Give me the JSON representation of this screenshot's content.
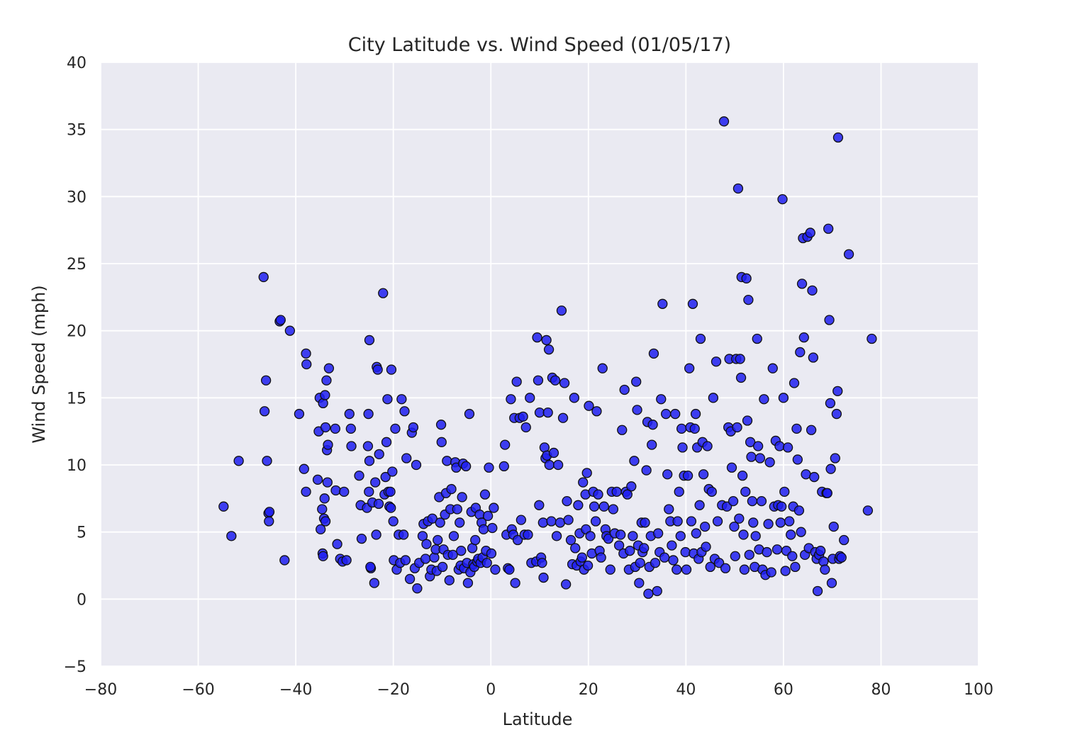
{
  "chart_data": {
    "type": "scatter",
    "title": "City Latitude vs. Wind Speed (01/05/17)",
    "xlabel": "Latitude",
    "ylabel": "Wind Speed (mph)",
    "xlim": [
      -80,
      100
    ],
    "ylim": [
      -5,
      40
    ],
    "xticks": [
      -80,
      -60,
      -40,
      -20,
      0,
      20,
      40,
      60,
      80,
      100
    ],
    "yticks": [
      -5,
      0,
      5,
      10,
      15,
      20,
      25,
      30,
      35,
      40
    ],
    "xtick_labels": [
      "−80",
      "−60",
      "−40",
      "−20",
      "0",
      "20",
      "40",
      "60",
      "80",
      "100"
    ],
    "ytick_labels": [
      "−5",
      "0",
      "5",
      "10",
      "15",
      "20",
      "25",
      "30",
      "35",
      "40"
    ],
    "grid": true,
    "colors": {
      "background": "#eaeaf2",
      "grid": "#ffffff",
      "marker": "#1f1ff0",
      "marker_edge": "#101010"
    },
    "points": [
      [
        -54.8,
        6.9
      ],
      [
        -53.2,
        4.7
      ],
      [
        -51.7,
        10.3
      ],
      [
        -46.6,
        24.0
      ],
      [
        -46.4,
        14.0
      ],
      [
        -46.1,
        16.3
      ],
      [
        -45.9,
        10.3
      ],
      [
        -45.6,
        6.4
      ],
      [
        -45.4,
        6.5
      ],
      [
        -45.5,
        5.8
      ],
      [
        -43.3,
        20.7
      ],
      [
        -43.1,
        20.8
      ],
      [
        -42.3,
        2.9
      ],
      [
        -41.2,
        20.0
      ],
      [
        -39.3,
        13.8
      ],
      [
        -38.3,
        9.7
      ],
      [
        -37.9,
        18.3
      ],
      [
        -37.8,
        17.5
      ],
      [
        -37.9,
        8.0
      ],
      [
        -35.5,
        8.9
      ],
      [
        -35.3,
        12.5
      ],
      [
        -35.1,
        15.0
      ],
      [
        -34.9,
        5.2
      ],
      [
        -34.6,
        6.7
      ],
      [
        -34.4,
        14.6
      ],
      [
        -34.2,
        6.0
      ],
      [
        -34.0,
        15.2
      ],
      [
        -33.9,
        12.8
      ],
      [
        -33.7,
        16.3
      ],
      [
        -33.6,
        11.1
      ],
      [
        -33.4,
        11.5
      ],
      [
        -33.2,
        17.2
      ],
      [
        -33.5,
        8.7
      ],
      [
        -34.5,
        3.4
      ],
      [
        -34.4,
        3.2
      ],
      [
        -34.1,
        7.5
      ],
      [
        -33.9,
        5.8
      ],
      [
        -31.9,
        12.7
      ],
      [
        -31.8,
        8.1
      ],
      [
        -31.5,
        4.1
      ],
      [
        -30.9,
        3.0
      ],
      [
        -30.4,
        2.8
      ],
      [
        -30.1,
        8.0
      ],
      [
        -29.6,
        2.9
      ],
      [
        -29.0,
        13.8
      ],
      [
        -28.7,
        12.7
      ],
      [
        -28.6,
        11.4
      ],
      [
        -27.0,
        9.2
      ],
      [
        -26.7,
        7.0
      ],
      [
        -26.5,
        4.5
      ],
      [
        -25.4,
        6.8
      ],
      [
        -25.2,
        11.4
      ],
      [
        -25.1,
        13.8
      ],
      [
        -24.9,
        19.3
      ],
      [
        -25.0,
        8.0
      ],
      [
        -24.9,
        10.3
      ],
      [
        -24.6,
        2.3
      ],
      [
        -24.7,
        2.4
      ],
      [
        -24.3,
        7.2
      ],
      [
        -23.9,
        1.2
      ],
      [
        -23.7,
        8.7
      ],
      [
        -23.5,
        4.8
      ],
      [
        -23.4,
        17.3
      ],
      [
        -23.2,
        17.1
      ],
      [
        -23.0,
        7.1
      ],
      [
        -22.9,
        10.8
      ],
      [
        -22.1,
        22.8
      ],
      [
        -21.8,
        7.8
      ],
      [
        -21.6,
        9.1
      ],
      [
        -21.4,
        11.7
      ],
      [
        -21.2,
        14.9
      ],
      [
        -21.0,
        8.0
      ],
      [
        -20.8,
        6.9
      ],
      [
        -20.6,
        8.0
      ],
      [
        -20.5,
        6.8
      ],
      [
        -20.4,
        17.1
      ],
      [
        -20.2,
        9.5
      ],
      [
        -20.0,
        5.8
      ],
      [
        -19.9,
        2.9
      ],
      [
        -19.6,
        12.7
      ],
      [
        -19.3,
        2.2
      ],
      [
        -18.9,
        4.8
      ],
      [
        -18.6,
        2.7
      ],
      [
        -18.3,
        14.9
      ],
      [
        -17.9,
        4.8
      ],
      [
        -17.7,
        14.0
      ],
      [
        -17.5,
        2.9
      ],
      [
        -17.3,
        10.5
      ],
      [
        -16.6,
        1.5
      ],
      [
        -16.2,
        12.4
      ],
      [
        -15.9,
        12.8
      ],
      [
        -15.6,
        2.3
      ],
      [
        -15.3,
        10.0
      ],
      [
        -15.1,
        0.8
      ],
      [
        -14.7,
        2.7
      ],
      [
        -14.0,
        4.7
      ],
      [
        -13.8,
        5.6
      ],
      [
        -13.4,
        3.0
      ],
      [
        -13.2,
        4.1
      ],
      [
        -12.9,
        5.8
      ],
      [
        -12.5,
        1.7
      ],
      [
        -12.2,
        2.2
      ],
      [
        -12.0,
        6.0
      ],
      [
        -11.6,
        3.1
      ],
      [
        -11.3,
        3.7
      ],
      [
        -11.1,
        2.1
      ],
      [
        -10.9,
        4.4
      ],
      [
        -10.6,
        7.6
      ],
      [
        -10.4,
        5.7
      ],
      [
        -10.2,
        13.0
      ],
      [
        -10.1,
        11.7
      ],
      [
        -9.9,
        2.4
      ],
      [
        -9.7,
        3.7
      ],
      [
        -9.4,
        6.3
      ],
      [
        -9.2,
        7.9
      ],
      [
        -9.0,
        10.3
      ],
      [
        -8.8,
        3.3
      ],
      [
        -8.5,
        1.4
      ],
      [
        -8.3,
        6.7
      ],
      [
        -8.1,
        8.2
      ],
      [
        -7.8,
        3.3
      ],
      [
        -7.6,
        4.7
      ],
      [
        -7.3,
        10.2
      ],
      [
        -7.1,
        9.8
      ],
      [
        -6.9,
        6.7
      ],
      [
        -6.6,
        2.2
      ],
      [
        -6.4,
        5.7
      ],
      [
        -6.2,
        2.5
      ],
      [
        -6.1,
        3.6
      ],
      [
        -5.9,
        7.6
      ],
      [
        -5.7,
        10.1
      ],
      [
        -5.5,
        2.3
      ],
      [
        -5.1,
        9.9
      ],
      [
        -4.9,
        2.7
      ],
      [
        -4.7,
        1.2
      ],
      [
        -4.4,
        13.8
      ],
      [
        -4.2,
        2.0
      ],
      [
        -4.0,
        6.5
      ],
      [
        -3.8,
        3.8
      ],
      [
        -3.6,
        2.6
      ],
      [
        -3.4,
        2.4
      ],
      [
        -3.2,
        4.4
      ],
      [
        -3.1,
        6.8
      ],
      [
        -2.8,
        2.8
      ],
      [
        -2.6,
        3.0
      ],
      [
        -2.3,
        6.3
      ],
      [
        -2.1,
        2.7
      ],
      [
        -1.9,
        5.7
      ],
      [
        -1.7,
        3.1
      ],
      [
        -1.5,
        5.2
      ],
      [
        -1.2,
        7.8
      ],
      [
        -1.0,
        3.6
      ],
      [
        -0.8,
        2.7
      ],
      [
        -0.6,
        6.2
      ],
      [
        -0.4,
        9.8
      ],
      [
        0.1,
        3.4
      ],
      [
        0.3,
        5.3
      ],
      [
        0.6,
        6.8
      ],
      [
        0.9,
        2.2
      ],
      [
        2.7,
        9.9
      ],
      [
        2.9,
        11.5
      ],
      [
        3.2,
        4.8
      ],
      [
        3.5,
        2.3
      ],
      [
        3.8,
        2.2
      ],
      [
        4.1,
        14.9
      ],
      [
        4.3,
        5.2
      ],
      [
        4.6,
        4.8
      ],
      [
        4.8,
        13.5
      ],
      [
        5.0,
        1.2
      ],
      [
        5.3,
        16.2
      ],
      [
        5.5,
        4.4
      ],
      [
        5.9,
        13.5
      ],
      [
        6.2,
        5.9
      ],
      [
        6.6,
        13.6
      ],
      [
        6.9,
        4.8
      ],
      [
        7.2,
        12.8
      ],
      [
        7.6,
        4.8
      ],
      [
        8.0,
        15.0
      ],
      [
        8.3,
        2.7
      ],
      [
        9.3,
        2.8
      ],
      [
        9.5,
        19.5
      ],
      [
        9.7,
        16.3
      ],
      [
        9.9,
        7.0
      ],
      [
        10.0,
        13.9
      ],
      [
        10.3,
        3.1
      ],
      [
        10.5,
        2.7
      ],
      [
        10.7,
        5.7
      ],
      [
        10.8,
        1.6
      ],
      [
        11.0,
        11.3
      ],
      [
        11.2,
        10.5
      ],
      [
        11.4,
        19.3
      ],
      [
        11.5,
        10.7
      ],
      [
        11.7,
        13.9
      ],
      [
        11.9,
        18.6
      ],
      [
        12.0,
        10.0
      ],
      [
        12.4,
        5.8
      ],
      [
        12.6,
        16.5
      ],
      [
        12.9,
        10.9
      ],
      [
        13.2,
        16.3
      ],
      [
        13.5,
        4.7
      ],
      [
        13.8,
        10.0
      ],
      [
        14.2,
        5.7
      ],
      [
        14.5,
        21.5
      ],
      [
        14.8,
        13.5
      ],
      [
        15.1,
        16.1
      ],
      [
        15.4,
        1.1
      ],
      [
        15.6,
        7.3
      ],
      [
        15.9,
        5.9
      ],
      [
        16.4,
        4.4
      ],
      [
        16.7,
        2.6
      ],
      [
        17.1,
        15.0
      ],
      [
        17.3,
        3.8
      ],
      [
        17.6,
        2.5
      ],
      [
        17.9,
        7.0
      ],
      [
        18.2,
        4.9
      ],
      [
        18.4,
        2.8
      ],
      [
        18.7,
        3.1
      ],
      [
        18.9,
        8.7
      ],
      [
        19.1,
        2.2
      ],
      [
        19.4,
        7.8
      ],
      [
        19.5,
        5.2
      ],
      [
        19.7,
        9.4
      ],
      [
        19.9,
        2.5
      ],
      [
        20.1,
        14.4
      ],
      [
        20.4,
        4.7
      ],
      [
        20.7,
        3.4
      ],
      [
        21.0,
        8.0
      ],
      [
        21.2,
        6.9
      ],
      [
        21.5,
        5.8
      ],
      [
        21.7,
        14.0
      ],
      [
        22.0,
        7.8
      ],
      [
        22.3,
        3.6
      ],
      [
        22.6,
        3.1
      ],
      [
        22.9,
        17.2
      ],
      [
        23.2,
        6.9
      ],
      [
        23.5,
        5.2
      ],
      [
        23.7,
        4.7
      ],
      [
        24.1,
        4.5
      ],
      [
        24.5,
        2.2
      ],
      [
        24.8,
        8.0
      ],
      [
        25.1,
        6.7
      ],
      [
        25.4,
        4.9
      ],
      [
        25.8,
        8.0
      ],
      [
        26.3,
        4.0
      ],
      [
        26.6,
        4.8
      ],
      [
        26.9,
        12.6
      ],
      [
        27.2,
        3.4
      ],
      [
        27.4,
        15.6
      ],
      [
        27.7,
        8.0
      ],
      [
        28.0,
        7.8
      ],
      [
        28.3,
        2.2
      ],
      [
        28.5,
        3.6
      ],
      [
        28.8,
        8.4
      ],
      [
        29.1,
        4.7
      ],
      [
        29.4,
        10.3
      ],
      [
        29.6,
        2.4
      ],
      [
        29.8,
        16.2
      ],
      [
        30.0,
        14.1
      ],
      [
        30.2,
        4.0
      ],
      [
        30.4,
        1.2
      ],
      [
        30.6,
        2.7
      ],
      [
        30.9,
        5.7
      ],
      [
        31.1,
        3.5
      ],
      [
        31.4,
        3.8
      ],
      [
        31.6,
        5.7
      ],
      [
        31.9,
        9.6
      ],
      [
        32.1,
        13.2
      ],
      [
        32.3,
        0.4
      ],
      [
        32.5,
        2.4
      ],
      [
        32.8,
        4.7
      ],
      [
        33.0,
        11.5
      ],
      [
        33.2,
        13.0
      ],
      [
        33.4,
        18.3
      ],
      [
        33.7,
        2.7
      ],
      [
        34.1,
        0.6
      ],
      [
        34.3,
        4.9
      ],
      [
        34.6,
        3.5
      ],
      [
        34.9,
        14.9
      ],
      [
        35.2,
        22.0
      ],
      [
        35.6,
        3.1
      ],
      [
        35.9,
        13.8
      ],
      [
        36.2,
        9.3
      ],
      [
        36.5,
        6.7
      ],
      [
        36.8,
        5.8
      ],
      [
        37.1,
        4.0
      ],
      [
        37.4,
        2.9
      ],
      [
        37.8,
        13.8
      ],
      [
        38.1,
        2.2
      ],
      [
        38.3,
        5.8
      ],
      [
        38.6,
        8.0
      ],
      [
        38.9,
        4.7
      ],
      [
        39.1,
        12.7
      ],
      [
        39.3,
        11.3
      ],
      [
        39.6,
        9.2
      ],
      [
        39.9,
        3.5
      ],
      [
        40.1,
        2.2
      ],
      [
        40.4,
        9.2
      ],
      [
        40.7,
        17.2
      ],
      [
        40.9,
        12.8
      ],
      [
        41.1,
        5.8
      ],
      [
        41.4,
        22.0
      ],
      [
        41.6,
        3.4
      ],
      [
        41.8,
        12.7
      ],
      [
        42.0,
        13.8
      ],
      [
        42.1,
        4.9
      ],
      [
        42.3,
        11.3
      ],
      [
        42.6,
        3.0
      ],
      [
        42.8,
        7.0
      ],
      [
        43.0,
        19.4
      ],
      [
        43.2,
        3.5
      ],
      [
        43.4,
        11.7
      ],
      [
        43.6,
        9.3
      ],
      [
        43.9,
        5.4
      ],
      [
        44.1,
        3.9
      ],
      [
        44.4,
        11.4
      ],
      [
        44.7,
        8.2
      ],
      [
        45.0,
        2.4
      ],
      [
        45.3,
        8.0
      ],
      [
        45.6,
        15.0
      ],
      [
        45.9,
        3.0
      ],
      [
        46.2,
        17.7
      ],
      [
        46.5,
        5.8
      ],
      [
        46.8,
        2.7
      ],
      [
        47.4,
        7.0
      ],
      [
        47.8,
        35.6
      ],
      [
        48.1,
        2.3
      ],
      [
        48.4,
        6.9
      ],
      [
        48.7,
        12.8
      ],
      [
        48.9,
        17.9
      ],
      [
        49.2,
        12.5
      ],
      [
        49.4,
        9.8
      ],
      [
        49.7,
        7.3
      ],
      [
        49.9,
        5.4
      ],
      [
        50.1,
        3.2
      ],
      [
        50.3,
        17.9
      ],
      [
        50.5,
        12.8
      ],
      [
        50.7,
        30.6
      ],
      [
        50.9,
        6.0
      ],
      [
        51.1,
        17.9
      ],
      [
        51.3,
        16.5
      ],
      [
        51.4,
        24.0
      ],
      [
        51.6,
        9.2
      ],
      [
        51.8,
        4.8
      ],
      [
        52.0,
        2.2
      ],
      [
        52.2,
        8.0
      ],
      [
        52.4,
        23.9
      ],
      [
        52.6,
        13.3
      ],
      [
        52.8,
        22.3
      ],
      [
        53.0,
        3.3
      ],
      [
        53.2,
        11.7
      ],
      [
        53.4,
        10.6
      ],
      [
        53.6,
        7.3
      ],
      [
        53.8,
        5.7
      ],
      [
        54.1,
        2.4
      ],
      [
        54.3,
        4.7
      ],
      [
        54.6,
        19.4
      ],
      [
        54.8,
        11.4
      ],
      [
        55.0,
        3.7
      ],
      [
        55.2,
        10.5
      ],
      [
        55.5,
        7.3
      ],
      [
        55.7,
        2.2
      ],
      [
        56.0,
        14.9
      ],
      [
        56.3,
        1.8
      ],
      [
        56.6,
        3.5
      ],
      [
        56.9,
        5.6
      ],
      [
        57.2,
        10.2
      ],
      [
        57.5,
        2.0
      ],
      [
        57.8,
        17.2
      ],
      [
        58.1,
        6.9
      ],
      [
        58.4,
        11.8
      ],
      [
        58.7,
        3.7
      ],
      [
        58.9,
        7.0
      ],
      [
        59.2,
        11.4
      ],
      [
        59.4,
        5.7
      ],
      [
        59.6,
        6.9
      ],
      [
        59.8,
        29.8
      ],
      [
        60.0,
        15.0
      ],
      [
        60.2,
        8.0
      ],
      [
        60.4,
        2.1
      ],
      [
        60.6,
        3.6
      ],
      [
        60.9,
        11.3
      ],
      [
        61.2,
        5.8
      ],
      [
        61.5,
        4.8
      ],
      [
        61.8,
        3.2
      ],
      [
        62.0,
        6.9
      ],
      [
        62.2,
        16.1
      ],
      [
        62.4,
        2.4
      ],
      [
        62.7,
        12.7
      ],
      [
        62.9,
        10.4
      ],
      [
        63.2,
        6.6
      ],
      [
        63.4,
        18.4
      ],
      [
        63.6,
        5.0
      ],
      [
        63.8,
        23.5
      ],
      [
        64.0,
        26.9
      ],
      [
        64.2,
        19.5
      ],
      [
        64.4,
        3.3
      ],
      [
        64.6,
        9.3
      ],
      [
        64.9,
        27.0
      ],
      [
        65.2,
        3.8
      ],
      [
        65.5,
        27.3
      ],
      [
        65.7,
        12.6
      ],
      [
        65.9,
        23.0
      ],
      [
        66.1,
        18.0
      ],
      [
        66.3,
        9.1
      ],
      [
        66.5,
        3.5
      ],
      [
        66.8,
        3.0
      ],
      [
        67.0,
        0.6
      ],
      [
        67.3,
        3.3
      ],
      [
        67.6,
        3.6
      ],
      [
        67.9,
        8.0
      ],
      [
        68.2,
        2.8
      ],
      [
        68.5,
        2.2
      ],
      [
        68.8,
        7.9
      ],
      [
        69.0,
        7.9
      ],
      [
        69.2,
        27.6
      ],
      [
        69.4,
        20.8
      ],
      [
        69.6,
        14.6
      ],
      [
        69.7,
        9.7
      ],
      [
        69.9,
        1.2
      ],
      [
        70.1,
        3.0
      ],
      [
        70.3,
        5.4
      ],
      [
        70.6,
        10.5
      ],
      [
        70.9,
        13.8
      ],
      [
        71.1,
        15.5
      ],
      [
        71.2,
        34.4
      ],
      [
        71.4,
        3.0
      ],
      [
        71.6,
        3.2
      ],
      [
        71.9,
        3.1
      ],
      [
        72.4,
        4.4
      ],
      [
        73.4,
        25.7
      ],
      [
        77.3,
        6.6
      ],
      [
        78.1,
        19.4
      ]
    ]
  }
}
